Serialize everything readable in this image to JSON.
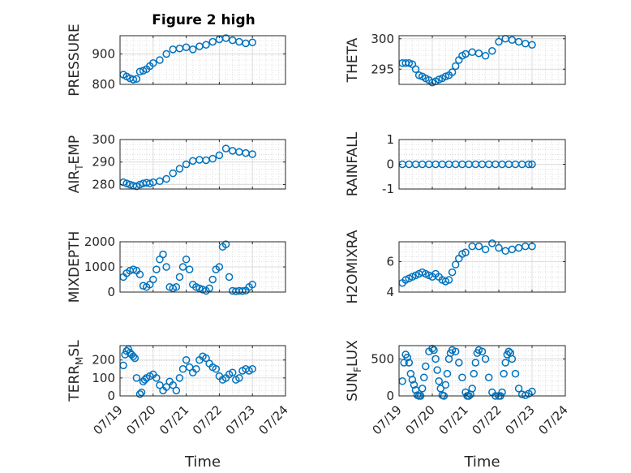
{
  "figure": {
    "title": "Figure 2 high"
  },
  "chart_data": [
    {
      "type": "scatter",
      "ylabel": "PRESSURE",
      "ylim": [
        800,
        960
      ],
      "yticks": [
        800,
        900
      ],
      "ytick_labels": [
        "800",
        "900"
      ],
      "xlim": [
        0,
        5
      ],
      "grid": true,
      "series": [
        {
          "x": [
            0.1,
            0.2,
            0.3,
            0.4,
            0.5,
            0.6,
            0.7,
            0.8,
            0.9,
            1.0,
            1.2,
            1.4,
            1.6,
            1.8,
            2.0,
            2.2,
            2.4,
            2.6,
            2.8,
            3.0,
            3.2,
            3.4,
            3.6,
            3.8,
            4.0
          ],
          "y": [
            832,
            826,
            820,
            816,
            818,
            842,
            845,
            850,
            860,
            870,
            880,
            900,
            915,
            918,
            922,
            915,
            925,
            930,
            940,
            948,
            952,
            945,
            940,
            935,
            938
          ]
        }
      ]
    },
    {
      "type": "scatter",
      "ylabel": "THETA",
      "ylim": [
        292.5,
        300.5
      ],
      "yticks": [
        295,
        300
      ],
      "ytick_labels": [
        "295",
        "300"
      ],
      "xlim": [
        0,
        5
      ],
      "grid": true,
      "series": [
        {
          "x": [
            0.1,
            0.2,
            0.3,
            0.4,
            0.5,
            0.6,
            0.7,
            0.8,
            0.9,
            1.0,
            1.1,
            1.2,
            1.3,
            1.4,
            1.5,
            1.6,
            1.7,
            1.8,
            1.9,
            2.0,
            2.2,
            2.4,
            2.6,
            2.8,
            3.0,
            3.2,
            3.4,
            3.6,
            3.8,
            4.0
          ],
          "y": [
            296,
            296,
            296,
            295.8,
            295,
            294,
            293.8,
            293.5,
            293.2,
            292.8,
            293,
            293.3,
            293.5,
            293.8,
            294,
            294.5,
            295.5,
            296.5,
            297.2,
            297.5,
            297.8,
            297.6,
            297.2,
            298,
            299.5,
            300,
            299.8,
            299.5,
            299.2,
            299
          ]
        }
      ]
    },
    {
      "type": "scatter",
      "ylabel": "AIRTEMP",
      "ylabel_main": "AIR",
      "ylabel_sub": "T",
      "ylabel_rest": "EMP",
      "ylim": [
        278,
        300
      ],
      "yticks": [
        280,
        290,
        300
      ],
      "ytick_labels": [
        "280",
        "290",
        "300"
      ],
      "xlim": [
        0,
        5
      ],
      "grid": true,
      "series": [
        {
          "x": [
            0.1,
            0.2,
            0.3,
            0.4,
            0.5,
            0.6,
            0.7,
            0.8,
            0.9,
            1.0,
            1.2,
            1.4,
            1.6,
            1.8,
            2.0,
            2.2,
            2.4,
            2.6,
            2.8,
            3.0,
            3.2,
            3.4,
            3.6,
            3.8,
            4.0
          ],
          "y": [
            281,
            280.5,
            280,
            279.5,
            279.2,
            280,
            280.5,
            280.8,
            280.5,
            281,
            281.5,
            282.5,
            285,
            287,
            289,
            290.5,
            291,
            290.8,
            291.5,
            293,
            296,
            295,
            294.5,
            294,
            293.5
          ]
        }
      ]
    },
    {
      "type": "scatter",
      "ylabel": "RAINFALL",
      "ylim": [
        -1,
        1
      ],
      "yticks": [
        -1,
        0,
        1
      ],
      "ytick_labels": [
        "-1",
        "0",
        "1"
      ],
      "xlim": [
        0,
        5
      ],
      "grid": true,
      "series": [
        {
          "x": [
            0.1,
            0.3,
            0.5,
            0.7,
            0.9,
            1.1,
            1.3,
            1.5,
            1.7,
            1.9,
            2.1,
            2.3,
            2.5,
            2.7,
            2.9,
            3.1,
            3.3,
            3.5,
            3.7,
            3.9,
            4.0
          ],
          "y": [
            0,
            0,
            0,
            0,
            0,
            0,
            0,
            0,
            0,
            0,
            0,
            0,
            0,
            0,
            0,
            0,
            0,
            0,
            0,
            0,
            0
          ]
        }
      ]
    },
    {
      "type": "scatter",
      "ylabel": "MIXDEPTH",
      "ylim": [
        0,
        2000
      ],
      "yticks": [
        0,
        1000,
        2000
      ],
      "ytick_labels": [
        "0",
        "1000",
        "2000"
      ],
      "xlim": [
        0,
        5
      ],
      "grid": true,
      "series": [
        {
          "x": [
            0.1,
            0.2,
            0.3,
            0.4,
            0.5,
            0.6,
            0.7,
            0.8,
            0.9,
            1.0,
            1.1,
            1.2,
            1.3,
            1.4,
            1.5,
            1.6,
            1.7,
            1.8,
            1.9,
            2.0,
            2.1,
            2.2,
            2.3,
            2.4,
            2.5,
            2.6,
            2.7,
            2.8,
            2.9,
            3.0,
            3.1,
            3.2,
            3.3,
            3.4,
            3.5,
            3.6,
            3.7,
            3.8,
            3.9,
            4.0
          ],
          "y": [
            600,
            750,
            850,
            900,
            850,
            700,
            250,
            200,
            300,
            500,
            900,
            1300,
            1500,
            1000,
            200,
            150,
            200,
            600,
            1000,
            1300,
            900,
            300,
            200,
            150,
            100,
            50,
            150,
            500,
            900,
            1000,
            1800,
            1900,
            600,
            50,
            30,
            50,
            40,
            60,
            200,
            300
          ]
        }
      ]
    },
    {
      "type": "scatter",
      "ylabel": "H2OMIXRA",
      "ylim": [
        4,
        7.3
      ],
      "yticks": [
        4,
        6
      ],
      "ytick_labels": [
        "4",
        "6"
      ],
      "xlim": [
        0,
        5
      ],
      "grid": true,
      "series": [
        {
          "x": [
            0.1,
            0.2,
            0.3,
            0.4,
            0.5,
            0.6,
            0.7,
            0.8,
            0.9,
            1.0,
            1.1,
            1.2,
            1.3,
            1.4,
            1.5,
            1.6,
            1.7,
            1.8,
            1.9,
            2.0,
            2.2,
            2.4,
            2.6,
            2.8,
            3.0,
            3.2,
            3.4,
            3.6,
            3.8,
            4.0
          ],
          "y": [
            4.6,
            4.8,
            4.9,
            5.0,
            5.1,
            5.2,
            5.3,
            5.2,
            5.1,
            5.0,
            5.2,
            5.0,
            4.8,
            4.7,
            4.8,
            5.3,
            5.8,
            6.2,
            6.5,
            6.6,
            7.0,
            7.0,
            6.8,
            7.2,
            6.9,
            6.7,
            6.8,
            6.9,
            7.0,
            7.0
          ]
        }
      ]
    },
    {
      "type": "scatter",
      "ylabel": "TERRMSL",
      "ylabel_main": "TERR",
      "ylabel_sub": "M",
      "ylabel_rest": "SL",
      "ylim": [
        0,
        280
      ],
      "yticks": [
        0,
        100,
        200
      ],
      "ytick_labels": [
        "0",
        "100",
        "200"
      ],
      "xlim": [
        0,
        5
      ],
      "grid": true,
      "series": [
        {
          "x": [
            0.1,
            0.15,
            0.2,
            0.25,
            0.3,
            0.35,
            0.4,
            0.45,
            0.5,
            0.6,
            0.65,
            0.7,
            0.75,
            0.8,
            0.9,
            1.0,
            1.1,
            1.2,
            1.3,
            1.4,
            1.5,
            1.6,
            1.7,
            1.8,
            1.9,
            2.0,
            2.1,
            2.2,
            2.3,
            2.4,
            2.5,
            2.6,
            2.7,
            2.8,
            2.9,
            3.0,
            3.1,
            3.2,
            3.3,
            3.4,
            3.5,
            3.6,
            3.7,
            3.8,
            3.9,
            4.0
          ],
          "y": [
            170,
            230,
            250,
            260,
            240,
            230,
            220,
            210,
            100,
            10,
            20,
            80,
            90,
            100,
            110,
            120,
            100,
            60,
            30,
            50,
            80,
            60,
            30,
            100,
            150,
            200,
            160,
            130,
            150,
            200,
            220,
            210,
            180,
            160,
            150,
            110,
            90,
            100,
            120,
            130,
            90,
            100,
            140,
            150,
            140,
            150
          ]
        }
      ]
    },
    {
      "type": "scatter",
      "ylabel": "SUNFLUX",
      "ylabel_main": "SUN",
      "ylabel_sub": "F",
      "ylabel_rest": "LUX",
      "ylim": [
        0,
        680
      ],
      "yticks": [
        0,
        500
      ],
      "ytick_labels": [
        "0",
        "500"
      ],
      "xlim": [
        0,
        5
      ],
      "grid": true,
      "series": [
        {
          "x": [
            0.1,
            0.15,
            0.2,
            0.25,
            0.3,
            0.35,
            0.4,
            0.45,
            0.5,
            0.55,
            0.6,
            0.65,
            0.7,
            0.75,
            0.8,
            0.9,
            1.0,
            1.05,
            1.1,
            1.15,
            1.2,
            1.25,
            1.3,
            1.35,
            1.4,
            1.45,
            1.5,
            1.55,
            1.6,
            1.7,
            1.8,
            1.9,
            2.0,
            2.05,
            2.1,
            2.15,
            2.2,
            2.25,
            2.3,
            2.35,
            2.4,
            2.5,
            2.6,
            2.7,
            2.8,
            2.9,
            3.0,
            3.05,
            3.1,
            3.15,
            3.2,
            3.25,
            3.3,
            3.35,
            3.4,
            3.5,
            3.6,
            3.7,
            3.8,
            3.9,
            4.0
          ],
          "y": [
            200,
            450,
            560,
            520,
            450,
            300,
            220,
            150,
            80,
            10,
            0,
            0,
            100,
            250,
            400,
            600,
            640,
            620,
            500,
            350,
            200,
            100,
            10,
            0,
            150,
            300,
            500,
            580,
            620,
            600,
            450,
            250,
            50,
            0,
            0,
            20,
            100,
            300,
            450,
            580,
            620,
            600,
            500,
            250,
            50,
            0,
            0,
            0,
            50,
            300,
            450,
            560,
            600,
            580,
            500,
            300,
            100,
            20,
            10,
            30,
            60
          ]
        }
      ]
    }
  ],
  "x_axis": {
    "tick_labels": [
      "07/19",
      "07/20",
      "07/21",
      "07/22",
      "07/23",
      "07/24"
    ],
    "label": "Time"
  },
  "colors": {
    "marker": "#0072BD",
    "grid": "#cccccc",
    "axis": "#262626"
  }
}
